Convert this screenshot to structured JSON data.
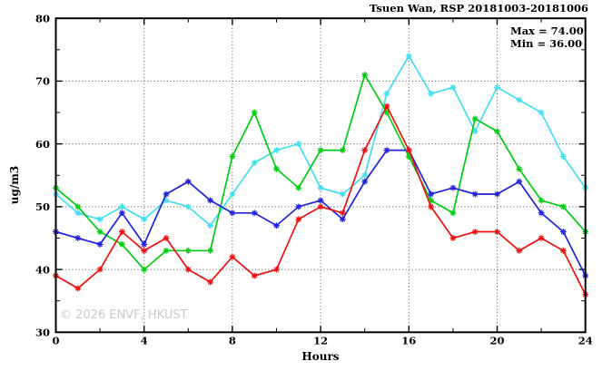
{
  "title": "Tsuen Wan, RSP 20181003-20181006",
  "stats": {
    "max_label": "Max = 74.00",
    "min_label": "Min = 36.00"
  },
  "watermark": "© 2026 ENVF, HKUST",
  "chart_data": {
    "type": "line",
    "title": "Tsuen Wan, RSP 20181003-20181006",
    "xlabel": "Hours",
    "ylabel": "ug/m3",
    "xlim": [
      0,
      24
    ],
    "ylim": [
      30,
      80
    ],
    "x_major_ticks": [
      0,
      4,
      8,
      12,
      16,
      20,
      24
    ],
    "x_minor_tick_step": 2,
    "y_major_ticks": [
      30,
      40,
      50,
      60,
      70,
      80
    ],
    "y_minor_tick_step": 5,
    "grid": "dotted gridlines at interior major ticks",
    "grid_color": "#555555",
    "marker": "asterisk",
    "legend": "none",
    "max_value": 74.0,
    "min_value": 36.0,
    "x": [
      0,
      1,
      2,
      3,
      4,
      5,
      6,
      7,
      8,
      9,
      10,
      11,
      12,
      13,
      14,
      15,
      16,
      17,
      18,
      19,
      20,
      21,
      22,
      23,
      24
    ],
    "series": [
      {
        "name": "cyan",
        "color": "#44dfee",
        "values": [
          52,
          49,
          48,
          50,
          48,
          51,
          50,
          47,
          52,
          57,
          59,
          60,
          53,
          52,
          55,
          68,
          74,
          68,
          69,
          62,
          69,
          67,
          65,
          58,
          53
        ]
      },
      {
        "name": "green",
        "color": "#00cc11",
        "values": [
          53,
          50,
          46,
          44,
          40,
          43,
          43,
          43,
          58,
          65,
          56,
          53,
          59,
          59,
          71,
          65,
          58,
          51,
          49,
          64,
          62,
          56,
          51,
          50,
          46
        ]
      },
      {
        "name": "blue",
        "color": "#2222dd",
        "values": [
          46,
          45,
          44,
          49,
          44,
          52,
          54,
          51,
          49,
          49,
          47,
          50,
          51,
          48,
          54,
          59,
          59,
          52,
          53,
          52,
          52,
          54,
          49,
          46,
          39
        ]
      },
      {
        "name": "red",
        "color": "#ee1111",
        "values": [
          39,
          37,
          40,
          46,
          43,
          45,
          40,
          38,
          42,
          39,
          40,
          48,
          50,
          49,
          59,
          66,
          59,
          50,
          45,
          46,
          46,
          43,
          45,
          43,
          36
        ]
      }
    ]
  }
}
